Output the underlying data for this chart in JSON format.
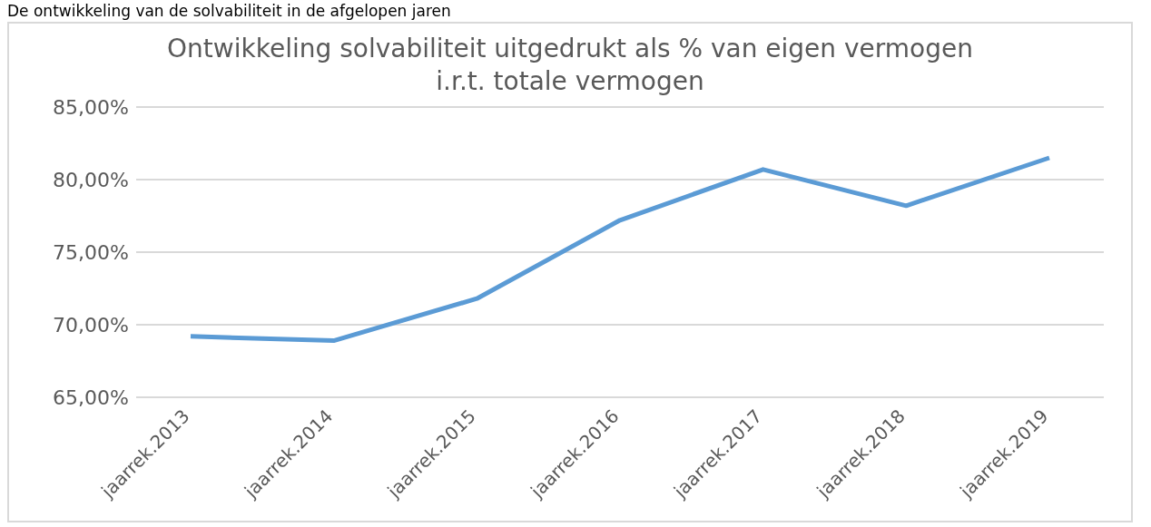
{
  "chart_data": {
    "type": "line",
    "title": "Ontwikkeling solvabiliteit uitgedrukt als % van eigen vermogen i.r.t. totale vermogen",
    "annotations": [
      "De ontwikkeling van de solvabiliteit in de afgelopen jaren"
    ],
    "categories": [
      "jaarrek.2013",
      "jaarrek.2014",
      "jaarrek.2015",
      "jaarrek.2016",
      "jaarrek.2017",
      "jaarrek.2018",
      "jaarrek.2019"
    ],
    "series": [
      {
        "color": "#5b9bd5",
        "values": [
          69.2,
          68.9,
          71.8,
          77.2,
          80.7,
          78.2,
          81.5
        ]
      }
    ],
    "ylim": [
      65,
      85
    ],
    "yticks": [
      {
        "value": 65,
        "label": "65,00%"
      },
      {
        "value": 70,
        "label": "70,00%"
      },
      {
        "value": 75,
        "label": "75,00%"
      },
      {
        "value": 80,
        "label": "80,00%"
      },
      {
        "value": 85,
        "label": "85,00%"
      }
    ],
    "grid": "y",
    "legend": false,
    "marker": "none",
    "line_style": "solid"
  }
}
